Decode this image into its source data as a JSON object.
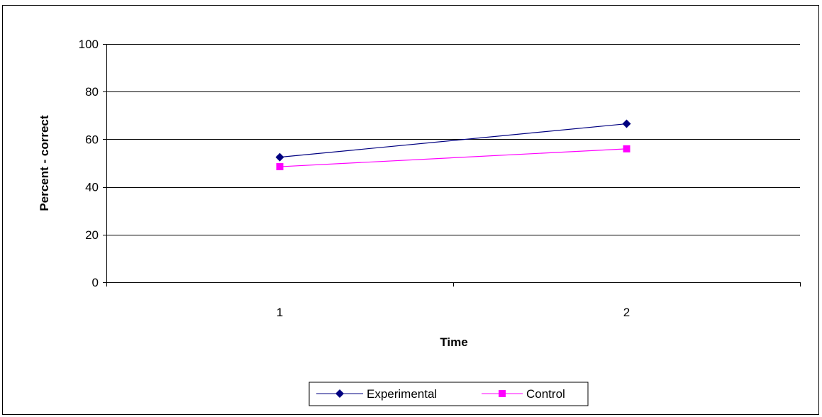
{
  "chart_data": {
    "type": "line",
    "title": "",
    "xlabel": "Time",
    "ylabel": "Percent - correct",
    "categories": [
      "1",
      "2"
    ],
    "ylim": [
      0,
      100
    ],
    "yticks": [
      "0",
      "20",
      "40",
      "60",
      "80",
      "100"
    ],
    "grid": true,
    "legend_position": "bottom",
    "series": [
      {
        "name": "Experimental",
        "values": [
          52.5,
          66.5
        ],
        "color": "#000080",
        "marker": "diamond"
      },
      {
        "name": "Control",
        "values": [
          48.5,
          56.0
        ],
        "color": "#ff00ff",
        "marker": "square"
      }
    ]
  }
}
